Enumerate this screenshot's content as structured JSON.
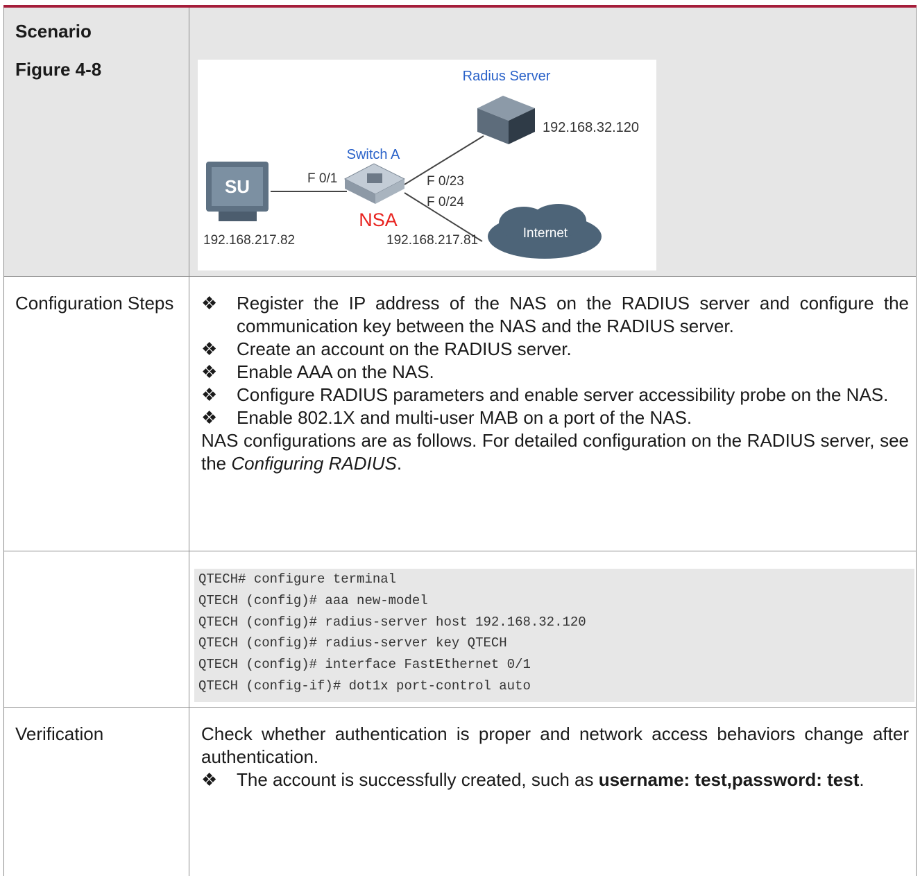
{
  "scenario": {
    "labels": [
      "Scenario",
      "Figure 4-8"
    ],
    "diagram": {
      "radius_server": "Radius Server",
      "server_ip": "192.168.32.120",
      "switch": "Switch A",
      "switch_name": "NSA",
      "port_client": "F 0/1",
      "port_server": "F 0/23",
      "port_internet": "F 0/24",
      "client_ip": "192.168.217.82",
      "switch_ip": "192.168.217.81",
      "internet": "Internet",
      "client": "SU"
    }
  },
  "bullet_marker": "❖",
  "configuration_steps": {
    "label": "Configuration Steps",
    "bullets": [
      "Register the IP address of the NAS on the RADIUS server and configure the communication key between the NAS and the RADIUS server.",
      "Create an account on the RADIUS server.",
      "Enable AAA on the NAS.",
      "Configure RADIUS parameters and enable server accessibility probe on the NAS.",
      "Enable 802.1X and multi-user MAB on a port of the NAS."
    ],
    "note": {
      "before": "NAS configurations are as follows. For detailed configuration on the RADIUS server, see the ",
      "ref": "Configuring RADIUS",
      "after": "."
    }
  },
  "code": [
    "QTECH# configure terminal",
    "QTECH (config)# aaa new-model",
    "QTECH (config)# radius-server host 192.168.32.120",
    "QTECH (config)# radius-server key QTECH",
    "QTECH (config)# interface FastEthernet 0/1",
    "QTECH (config-if)# dot1x port-control auto"
  ],
  "verification": {
    "label": "Verification",
    "text": "Check whether authentication is proper and network access behaviors change after authentication.",
    "bullets": [
      {
        "before": "The account is successfully created, such as ",
        "bold": "username: test,password: test",
        "after": "."
      }
    ]
  }
}
